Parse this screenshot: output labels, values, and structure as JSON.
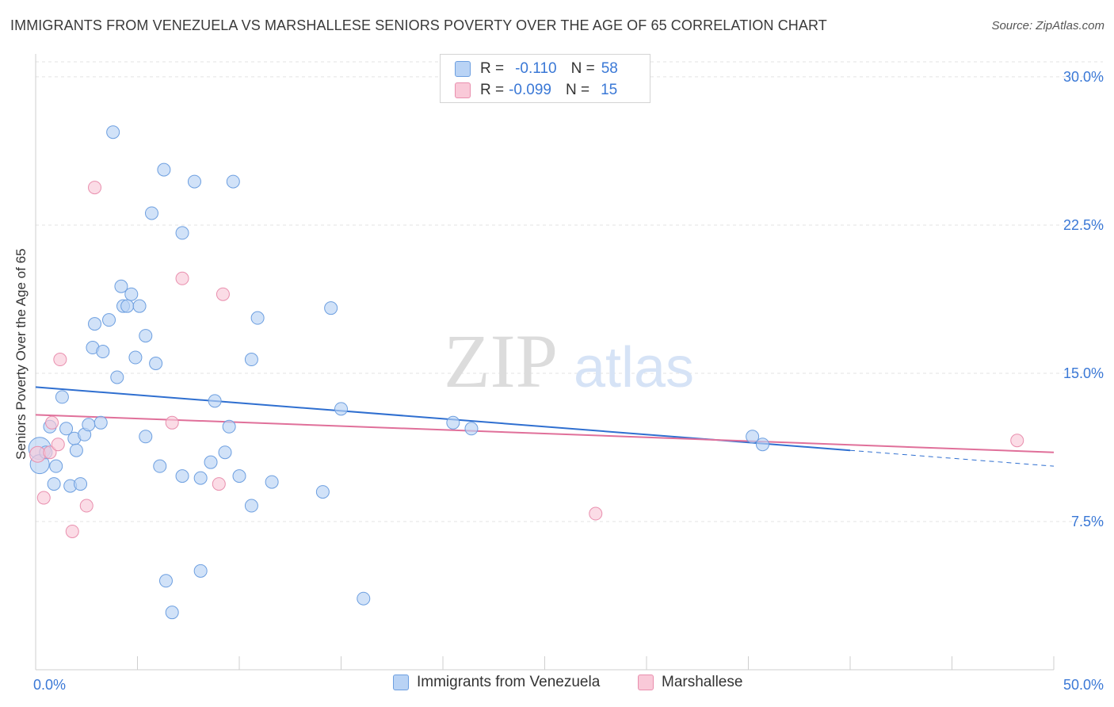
{
  "title": "IMMIGRANTS FROM VENEZUELA VS MARSHALLESE SENIORS POVERTY OVER THE AGE OF 65 CORRELATION CHART",
  "source": "Source: ZipAtlas.com",
  "watermark": {
    "zip": "ZIP",
    "atlas": "atlas"
  },
  "legend_top": {
    "rows": [
      {
        "r_label": "R =",
        "r_value": "-0.110",
        "n_label": "N =",
        "n_value": "58"
      },
      {
        "r_label": "R =",
        "r_value": "-0.099",
        "n_label": "N =",
        "n_value": "15"
      }
    ]
  },
  "legend_bottom": {
    "items": [
      {
        "label": "Immigrants from Venezuela"
      },
      {
        "label": "Marshallese"
      }
    ]
  },
  "colors": {
    "blue_fill": "#b9d3f5",
    "blue_stroke": "#6d9fe0",
    "blue_line": "#2f6fd0",
    "pink_fill": "#f9c9d8",
    "pink_stroke": "#e98fae",
    "pink_line": "#e0709a",
    "axis_text": "#3a78d6",
    "grid": "#e3e3e3"
  },
  "chart_data": {
    "type": "scatter",
    "title": "IMMIGRANTS FROM VENEZUELA VS MARSHALLESE SENIORS POVERTY OVER THE AGE OF 65 CORRELATION CHART",
    "xlabel": "",
    "ylabel": "Seniors Poverty Over the Age of 65",
    "xlim": [
      0,
      50
    ],
    "ylim": [
      0,
      31
    ],
    "x_tick_labels": [
      {
        "value": 0,
        "label": "0.0%"
      },
      {
        "value": 50,
        "label": "50.0%"
      }
    ],
    "x_minor_ticks": [
      0,
      5,
      10,
      15,
      20,
      25,
      30,
      35,
      40,
      45,
      50
    ],
    "y_ticks": [
      {
        "value": 7.5,
        "label": "7.5%"
      },
      {
        "value": 15.0,
        "label": "15.0%"
      },
      {
        "value": 22.5,
        "label": "22.5%"
      },
      {
        "value": 30.0,
        "label": "30.0%"
      }
    ],
    "grid": true,
    "series": [
      {
        "name": "Immigrants from Venezuela",
        "color": "blue",
        "points": [
          [
            0.2,
            11.2,
            14
          ],
          [
            0.2,
            10.4,
            12
          ],
          [
            0.5,
            11.0,
            8
          ],
          [
            0.7,
            12.3,
            8
          ],
          [
            0.9,
            9.4,
            8
          ],
          [
            1.0,
            10.3,
            8
          ],
          [
            1.3,
            13.8,
            8
          ],
          [
            1.5,
            12.2,
            8
          ],
          [
            1.7,
            9.3,
            8
          ],
          [
            1.9,
            11.7,
            8
          ],
          [
            2.0,
            11.1,
            8
          ],
          [
            2.2,
            9.4,
            8
          ],
          [
            2.4,
            11.9,
            8
          ],
          [
            2.6,
            12.4,
            8
          ],
          [
            2.8,
            16.3,
            8
          ],
          [
            2.9,
            17.5,
            8
          ],
          [
            3.2,
            12.5,
            8
          ],
          [
            3.3,
            16.1,
            8
          ],
          [
            3.6,
            17.7,
            8
          ],
          [
            3.8,
            27.2,
            8
          ],
          [
            4.0,
            14.8,
            8
          ],
          [
            4.2,
            19.4,
            8
          ],
          [
            4.3,
            18.4,
            8
          ],
          [
            4.5,
            18.4,
            8
          ],
          [
            4.7,
            19.0,
            8
          ],
          [
            4.9,
            15.8,
            8
          ],
          [
            5.1,
            18.4,
            8
          ],
          [
            5.4,
            16.9,
            8
          ],
          [
            5.4,
            11.8,
            8
          ],
          [
            5.7,
            23.1,
            8
          ],
          [
            5.9,
            15.5,
            8
          ],
          [
            6.1,
            10.3,
            8
          ],
          [
            6.3,
            25.3,
            8
          ],
          [
            6.4,
            4.5,
            8
          ],
          [
            6.7,
            2.9,
            8
          ],
          [
            7.2,
            22.1,
            8
          ],
          [
            7.2,
            9.8,
            8
          ],
          [
            7.8,
            24.7,
            8
          ],
          [
            8.1,
            9.7,
            8
          ],
          [
            8.1,
            5.0,
            8
          ],
          [
            8.6,
            10.5,
            8
          ],
          [
            8.8,
            13.6,
            8
          ],
          [
            9.3,
            11.0,
            8
          ],
          [
            9.5,
            12.3,
            8
          ],
          [
            9.7,
            24.7,
            8
          ],
          [
            10.0,
            9.8,
            8
          ],
          [
            10.6,
            8.3,
            8
          ],
          [
            10.6,
            15.7,
            8
          ],
          [
            10.9,
            17.8,
            8
          ],
          [
            11.6,
            9.5,
            8
          ],
          [
            14.1,
            9.0,
            8
          ],
          [
            14.5,
            18.3,
            8
          ],
          [
            15.0,
            13.2,
            8
          ],
          [
            16.1,
            3.6,
            8
          ],
          [
            20.5,
            12.5,
            8
          ],
          [
            21.4,
            12.2,
            8
          ],
          [
            35.2,
            11.8,
            8
          ],
          [
            35.7,
            11.4,
            8
          ]
        ],
        "trend": {
          "x": [
            0,
            40
          ],
          "y": [
            14.3,
            11.1
          ]
        },
        "trend_dashed": {
          "x": [
            40,
            50
          ],
          "y": [
            11.1,
            10.3
          ]
        }
      },
      {
        "name": "Marshallese",
        "color": "pink",
        "points": [
          [
            0.1,
            10.9,
            10
          ],
          [
            0.4,
            8.7,
            8
          ],
          [
            0.7,
            11.0,
            8
          ],
          [
            0.8,
            12.5,
            8
          ],
          [
            1.1,
            11.4,
            8
          ],
          [
            1.2,
            15.7,
            8
          ],
          [
            1.8,
            7.0,
            8
          ],
          [
            2.5,
            8.3,
            8
          ],
          [
            2.9,
            24.4,
            8
          ],
          [
            6.7,
            12.5,
            8
          ],
          [
            7.2,
            19.8,
            8
          ],
          [
            9.0,
            9.4,
            8
          ],
          [
            9.2,
            19.0,
            8
          ],
          [
            27.5,
            7.9,
            8
          ],
          [
            48.2,
            11.6,
            8
          ]
        ],
        "trend": {
          "x": [
            0,
            50
          ],
          "y": [
            12.9,
            11.0
          ]
        }
      }
    ]
  }
}
